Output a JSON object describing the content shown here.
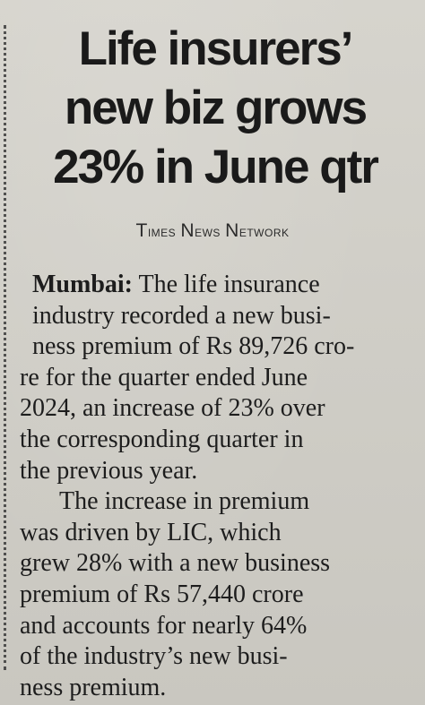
{
  "article": {
    "headline": {
      "line1": "Life insurers’",
      "line2": "new biz grows",
      "line3": "23% in June qtr"
    },
    "byline": {
      "w1_cap": "T",
      "w1_rest": "imes",
      "w2_cap": "N",
      "w2_rest": "ews",
      "w3_cap": "N",
      "w3_rest": "etwork"
    },
    "body": {
      "dateline": "Mumbai:",
      "p1": [
        " The life insurance",
        "industry recorded a new busi-",
        "ness premium of Rs 89,726 cro-",
        "re for the quarter ended June",
        "2024, an increase of 23% over",
        "the corresponding quarter in",
        "the previous year."
      ],
      "p2": [
        "The increase in premium",
        "was driven by LIC, which",
        "grew 28% with a new business",
        "premium of Rs 57,440 crore",
        "and accounts for nearly 64%",
        "of the industry’s new busi-",
        "ness premium."
      ]
    }
  }
}
